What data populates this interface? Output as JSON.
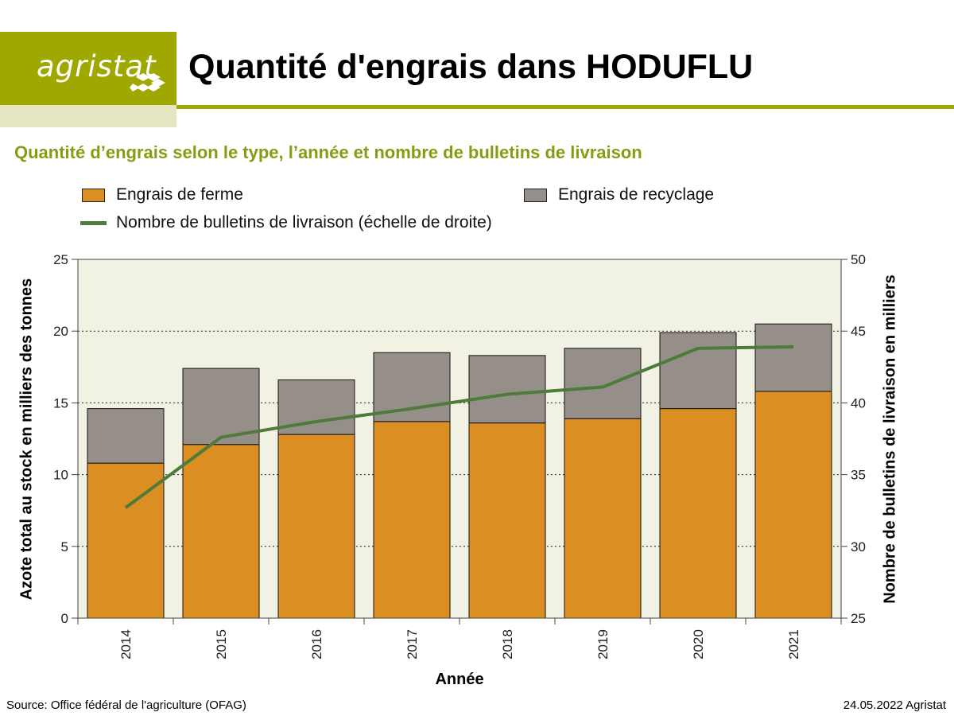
{
  "header": {
    "logo_text": "agristat",
    "title": "Quantité d'engrais dans HODUFLU"
  },
  "subtitle": "Quantité d’engrais selon le type, l’année et nombre de bulletins de livraison",
  "legend": {
    "ferme": "Engrais de ferme",
    "recyclage": "Engrais de recyclage",
    "bulletins": "Nombre de bulletins de livraison (échelle de droite)"
  },
  "footer": {
    "source": "Source: Office fédéral de l'agriculture (OFAG)",
    "date": "24.05.2022 Agristat"
  },
  "colors": {
    "brand": "#9ea800",
    "ferme": "#db8f23",
    "recyclage": "#968e89",
    "line": "#4e7a3a",
    "plot_bg": "#f2f2e4"
  },
  "chart_data": {
    "type": "bar",
    "stacked": true,
    "categories": [
      "2014",
      "2015",
      "2016",
      "2017",
      "2018",
      "2019",
      "2020",
      "2021"
    ],
    "series": [
      {
        "name": "Engrais de ferme",
        "values": [
          10.8,
          12.1,
          12.8,
          13.7,
          13.6,
          13.9,
          14.6,
          15.8
        ]
      },
      {
        "name": "Engrais de recyclage",
        "values": [
          3.8,
          5.3,
          3.8,
          4.8,
          4.7,
          4.9,
          5.3,
          4.7
        ]
      }
    ],
    "line_series": {
      "name": "Nombre de bulletins de livraison (échelle de droite)",
      "axis": "right",
      "values": [
        32.7,
        37.6,
        38.7,
        39.6,
        40.6,
        41.1,
        43.8,
        43.9
      ]
    },
    "xlabel": "Année",
    "ylabel": "Azote total au stock en milliers des tonnes",
    "ylabel_right": "Nombre de bulletins de livraison en milliers",
    "ylim": [
      0,
      25
    ],
    "yticks": [
      0,
      5,
      10,
      15,
      20,
      25
    ],
    "ylim_right": [
      25,
      50
    ],
    "yticks_right": [
      25,
      30,
      35,
      40,
      45,
      50
    ],
    "grid": "horizontal dotted",
    "legend_position": "top"
  }
}
